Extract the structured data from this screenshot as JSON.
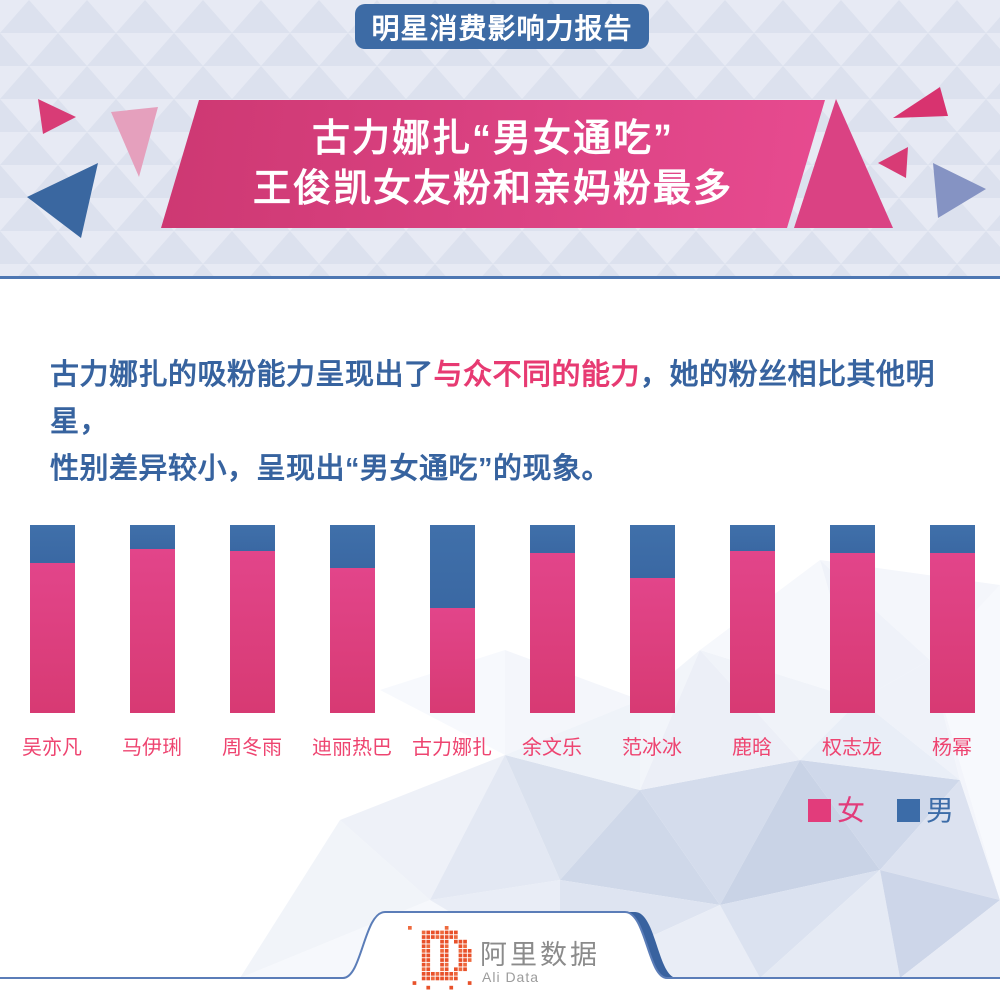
{
  "badge": {
    "text": "明星消费影响力报告"
  },
  "title": {
    "line1": "古力娜扎“男女通吃”",
    "line2": "王俊凯女友粉和亲妈粉最多"
  },
  "intro": {
    "part1": "古力娜扎的吸粉能力呈现出了",
    "highlight": "与众不同的能力",
    "part2": "，她的粉丝相比其他明星，",
    "line2": "性别差异较小，呈现出“男女通吃”的现象。"
  },
  "chart_data": {
    "type": "bar",
    "subtype": "stacked-percent-column",
    "title": "",
    "xlabel": "",
    "ylabel": "",
    "unit": "percent",
    "axes": "hidden",
    "grid": false,
    "legend_position": "bottom-right",
    "categories": [
      "吴亦凡",
      "马伊琍",
      "周冬雨",
      "迪丽热巴",
      "古力娜扎",
      "余文乐",
      "范冰冰",
      "鹿晗",
      "权志龙",
      "杨幂"
    ],
    "series": [
      {
        "name": "女",
        "color": "#dc3e7e",
        "values": [
          80,
          87,
          86,
          77,
          56,
          85,
          72,
          86,
          85,
          85
        ]
      },
      {
        "name": "男",
        "color": "#3b6ba7",
        "values": [
          20,
          13,
          14,
          23,
          44,
          15,
          28,
          14,
          15,
          15
        ]
      }
    ]
  },
  "legend": {
    "items": [
      {
        "label": "女",
        "color": "#e23c7b"
      },
      {
        "label": "男",
        "color": "#3c6ca8"
      }
    ]
  },
  "footer": {
    "brand_cn": "阿里数据",
    "brand_en": "Ali Data"
  },
  "colors": {
    "accent_pink": "#dc3e7e",
    "accent_blue": "#3b6ba7",
    "banner_pink": "#d9417f",
    "badge_blue": "#3d6ba5",
    "text_blue": "#37639f",
    "text_pink": "#e73a72",
    "label_pink": "#ee4470",
    "divider_blue": "#4e77b3",
    "logo_orange": "#e8512a"
  }
}
